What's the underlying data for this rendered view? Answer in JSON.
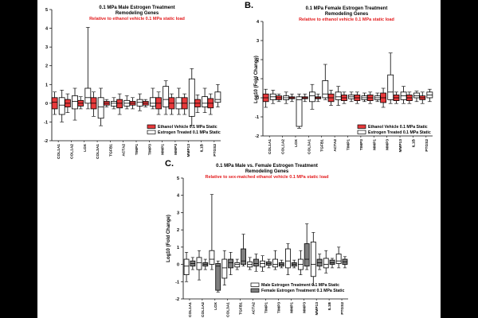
{
  "chart_data": [
    {
      "type": "box",
      "panel_letter": "",
      "title_line1": "0.1 MPa Male Estrogen Treatment",
      "title_line2": "Remodeling Genes",
      "subtitle": "Relative to ethanol vehicle 0.1 MPa static load",
      "ylabel": "",
      "ylim": [
        -2,
        5
      ],
      "yticks": [
        "-2",
        "-1",
        "0",
        "1",
        "2",
        "3",
        "4",
        "5"
      ],
      "categories": [
        "COL1A1",
        "COL1A2",
        "LOX",
        "COL3A1",
        "TGFB1",
        "ACTA2",
        "TIMP1",
        "TIMP3",
        "MMP1",
        "MMP3",
        "MMP13",
        "IL1B",
        "PTGS2"
      ],
      "series": [
        {
          "name": "Ethanol Vehicle 0.1 MPa Static",
          "color": "#e8393b",
          "boxes": [
            [
              -0.6,
              -0.3,
              0.05,
              0.3,
              0.6
            ],
            [
              -0.5,
              -0.2,
              0.0,
              0.2,
              0.5
            ],
            [
              -0.3,
              -0.15,
              0.0,
              0.15,
              0.35
            ],
            [
              -0.7,
              -0.3,
              0.0,
              0.3,
              0.6
            ],
            [
              -0.2,
              -0.1,
              0.0,
              0.1,
              0.2
            ],
            [
              -0.6,
              -0.25,
              0.0,
              0.2,
              0.5
            ],
            [
              -0.3,
              -0.1,
              0.0,
              0.1,
              0.3
            ],
            [
              -0.2,
              -0.1,
              0.0,
              0.1,
              0.2
            ],
            [
              -0.6,
              -0.3,
              0.0,
              0.3,
              0.6
            ],
            [
              -0.6,
              -0.3,
              0.0,
              0.3,
              0.5
            ],
            [
              -0.6,
              -0.3,
              0.0,
              0.3,
              0.5
            ],
            [
              -0.5,
              -0.2,
              0.0,
              0.2,
              0.45
            ],
            [
              -0.6,
              -0.25,
              0.0,
              0.25,
              0.5
            ]
          ]
        },
        {
          "name": "Estrogen Treated 0.1 MPa Static",
          "color": "#ffffff",
          "boxes": [
            [
              -1.0,
              -0.6,
              -0.1,
              0.3,
              0.7
            ],
            [
              -0.9,
              -0.3,
              0.1,
              0.4,
              0.8
            ],
            [
              -0.3,
              0.0,
              0.3,
              0.8,
              4.05
            ],
            [
              -1.2,
              -0.8,
              -0.2,
              0.3,
              0.8
            ],
            [
              -0.3,
              -0.15,
              0.0,
              0.1,
              0.3
            ],
            [
              -0.3,
              -0.15,
              0.0,
              0.15,
              0.4
            ],
            [
              -0.4,
              -0.15,
              0.05,
              0.2,
              0.5
            ],
            [
              -0.3,
              -0.15,
              0.0,
              0.3,
              0.8
            ],
            [
              -0.6,
              -0.2,
              0.2,
              0.9,
              1.2
            ],
            [
              -0.6,
              -0.3,
              0.0,
              0.3,
              0.8
            ],
            [
              -1.2,
              -0.7,
              0.0,
              1.3,
              1.85
            ],
            [
              -0.5,
              -0.2,
              0.0,
              0.35,
              0.8
            ],
            [
              -0.2,
              0.05,
              0.2,
              0.6,
              1.0
            ]
          ]
        }
      ]
    },
    {
      "type": "box",
      "panel_letter": "B.",
      "title_line1": "0.1 MPa Female Estrogen Treatment",
      "title_line2": "Remodeling Genes",
      "subtitle": "Relative to ethanol vehicle 0.1 MPa static load",
      "ylabel": "Log10 (Fold Change)",
      "ylim": [
        -2,
        4
      ],
      "yticks": [
        "-2",
        "-1",
        "0",
        "1",
        "2",
        "3",
        "4"
      ],
      "categories": [
        "COL1A1",
        "COL1A2",
        "LOX",
        "COL3A1",
        "TGFB1",
        "ACTA2",
        "TIMP1",
        "TIMP3",
        "MMP1",
        "MMP3",
        "MMP13",
        "IL1B",
        "PTGS2"
      ],
      "series": [
        {
          "name": "Ethanol Vehicle 0.1 MPa Static",
          "color": "#e8393b",
          "boxes": [
            [
              -0.5,
              -0.2,
              0.0,
              0.2,
              0.45
            ],
            [
              -0.2,
              -0.1,
              0.0,
              0.1,
              0.2
            ],
            [
              -0.2,
              -0.05,
              0.0,
              0.05,
              0.2
            ],
            [
              -0.2,
              -0.05,
              0.0,
              0.05,
              0.2
            ],
            [
              -0.2,
              -0.05,
              0.0,
              0.05,
              0.2
            ],
            [
              -0.4,
              -0.2,
              0.0,
              0.2,
              0.4
            ],
            [
              -0.3,
              -0.15,
              0.0,
              0.15,
              0.3
            ],
            [
              -0.3,
              -0.15,
              0.0,
              0.15,
              0.3
            ],
            [
              -0.3,
              -0.15,
              0.0,
              0.15,
              0.3
            ],
            [
              -0.5,
              -0.25,
              0.0,
              0.25,
              0.5
            ],
            [
              -0.3,
              -0.15,
              0.0,
              0.15,
              0.3
            ],
            [
              -0.3,
              -0.15,
              0.0,
              0.15,
              0.3
            ],
            [
              -0.3,
              -0.1,
              0.0,
              0.1,
              0.3
            ]
          ]
        },
        {
          "name": "Estrogen Treated 0.1 MPa Static",
          "color": "#ffffff",
          "boxes": [
            [
              -0.3,
              -0.1,
              0.05,
              0.2,
              0.4
            ],
            [
              -0.3,
              -0.1,
              0.0,
              0.1,
              0.3
            ],
            [
              -1.6,
              -1.5,
              -0.1,
              0.05,
              0.2
            ],
            [
              -0.6,
              -0.2,
              0.1,
              0.3,
              0.7
            ],
            [
              -0.1,
              0.0,
              0.2,
              0.9,
              1.75
            ],
            [
              -0.4,
              -0.1,
              0.05,
              0.3,
              0.6
            ],
            [
              -0.2,
              -0.05,
              0.05,
              0.15,
              0.3
            ],
            [
              -0.2,
              -0.1,
              0.0,
              0.1,
              0.25
            ],
            [
              -0.2,
              -0.1,
              0.0,
              0.1,
              0.25
            ],
            [
              -0.3,
              -0.1,
              0.3,
              1.2,
              2.35
            ],
            [
              -0.3,
              -0.1,
              0.1,
              0.3,
              0.6
            ],
            [
              -0.2,
              0.0,
              0.1,
              0.25,
              0.35
            ],
            [
              -0.2,
              0.0,
              0.15,
              0.3,
              0.45
            ]
          ]
        }
      ]
    },
    {
      "type": "box",
      "panel_letter": "C.",
      "title_line1": "0.1 MPa Male vs.  Female  Estrogen Treatment",
      "title_line2": "Remodeling Genes",
      "subtitle": "Relative to sex-matched ethanol vehicle 0.1 MPa static load",
      "ylabel": "Log10 (Fold Change)",
      "ylim": [
        -2,
        5
      ],
      "yticks": [
        "-2",
        "-1",
        "0",
        "1",
        "2",
        "3",
        "4",
        "5"
      ],
      "categories": [
        "COL1A1",
        "COL1A2",
        "LOX",
        "COL3A1",
        "TGFB1",
        "ACTA2",
        "TIMP1",
        "TIMP3",
        "MMP1",
        "MMP3",
        "MMP13",
        "IL1B",
        "PTGS2"
      ],
      "series": [
        {
          "name": "Male Estrogen Treatment 0.1 MPa Static",
          "color": "#ffffff",
          "boxes": [
            [
              -1.0,
              -0.6,
              -0.1,
              0.3,
              0.7
            ],
            [
              -0.9,
              -0.3,
              0.1,
              0.4,
              0.8
            ],
            [
              -0.3,
              0.0,
              0.3,
              0.8,
              4.05
            ],
            [
              -1.2,
              -0.8,
              -0.2,
              0.3,
              0.8
            ],
            [
              -0.3,
              -0.15,
              0.0,
              0.1,
              0.3
            ],
            [
              -0.3,
              -0.15,
              0.0,
              0.15,
              0.4
            ],
            [
              -0.4,
              -0.15,
              0.05,
              0.2,
              0.5
            ],
            [
              -0.3,
              -0.15,
              0.0,
              0.3,
              0.8
            ],
            [
              -0.6,
              -0.2,
              0.2,
              0.9,
              1.2
            ],
            [
              -0.6,
              -0.3,
              0.0,
              0.3,
              0.8
            ],
            [
              -1.2,
              -0.7,
              0.0,
              1.3,
              1.85
            ],
            [
              -0.5,
              -0.2,
              0.0,
              0.35,
              0.8
            ],
            [
              -0.2,
              0.05,
              0.2,
              0.6,
              1.0
            ]
          ]
        },
        {
          "name": "Female Estrogen Treatment  0.1 MPa Static",
          "color": "#7f7f7f",
          "boxes": [
            [
              -0.3,
              -0.1,
              0.05,
              0.2,
              0.4
            ],
            [
              -0.3,
              -0.1,
              0.0,
              0.1,
              0.3
            ],
            [
              -1.6,
              -1.5,
              -0.1,
              0.05,
              0.2
            ],
            [
              -0.6,
              -0.2,
              0.1,
              0.3,
              0.7
            ],
            [
              -0.1,
              0.0,
              0.2,
              0.9,
              1.75
            ],
            [
              -0.4,
              -0.1,
              0.05,
              0.3,
              0.6
            ],
            [
              -0.2,
              -0.05,
              0.05,
              0.15,
              0.3
            ],
            [
              -0.2,
              -0.1,
              0.0,
              0.1,
              0.25
            ],
            [
              -0.2,
              -0.1,
              0.0,
              0.1,
              0.25
            ],
            [
              -0.3,
              -0.1,
              0.3,
              1.2,
              2.35
            ],
            [
              -0.3,
              -0.1,
              0.1,
              0.3,
              0.6
            ],
            [
              -0.2,
              0.0,
              0.1,
              0.25,
              0.35
            ],
            [
              -0.2,
              0.0,
              0.15,
              0.3,
              0.45
            ]
          ]
        }
      ]
    }
  ]
}
